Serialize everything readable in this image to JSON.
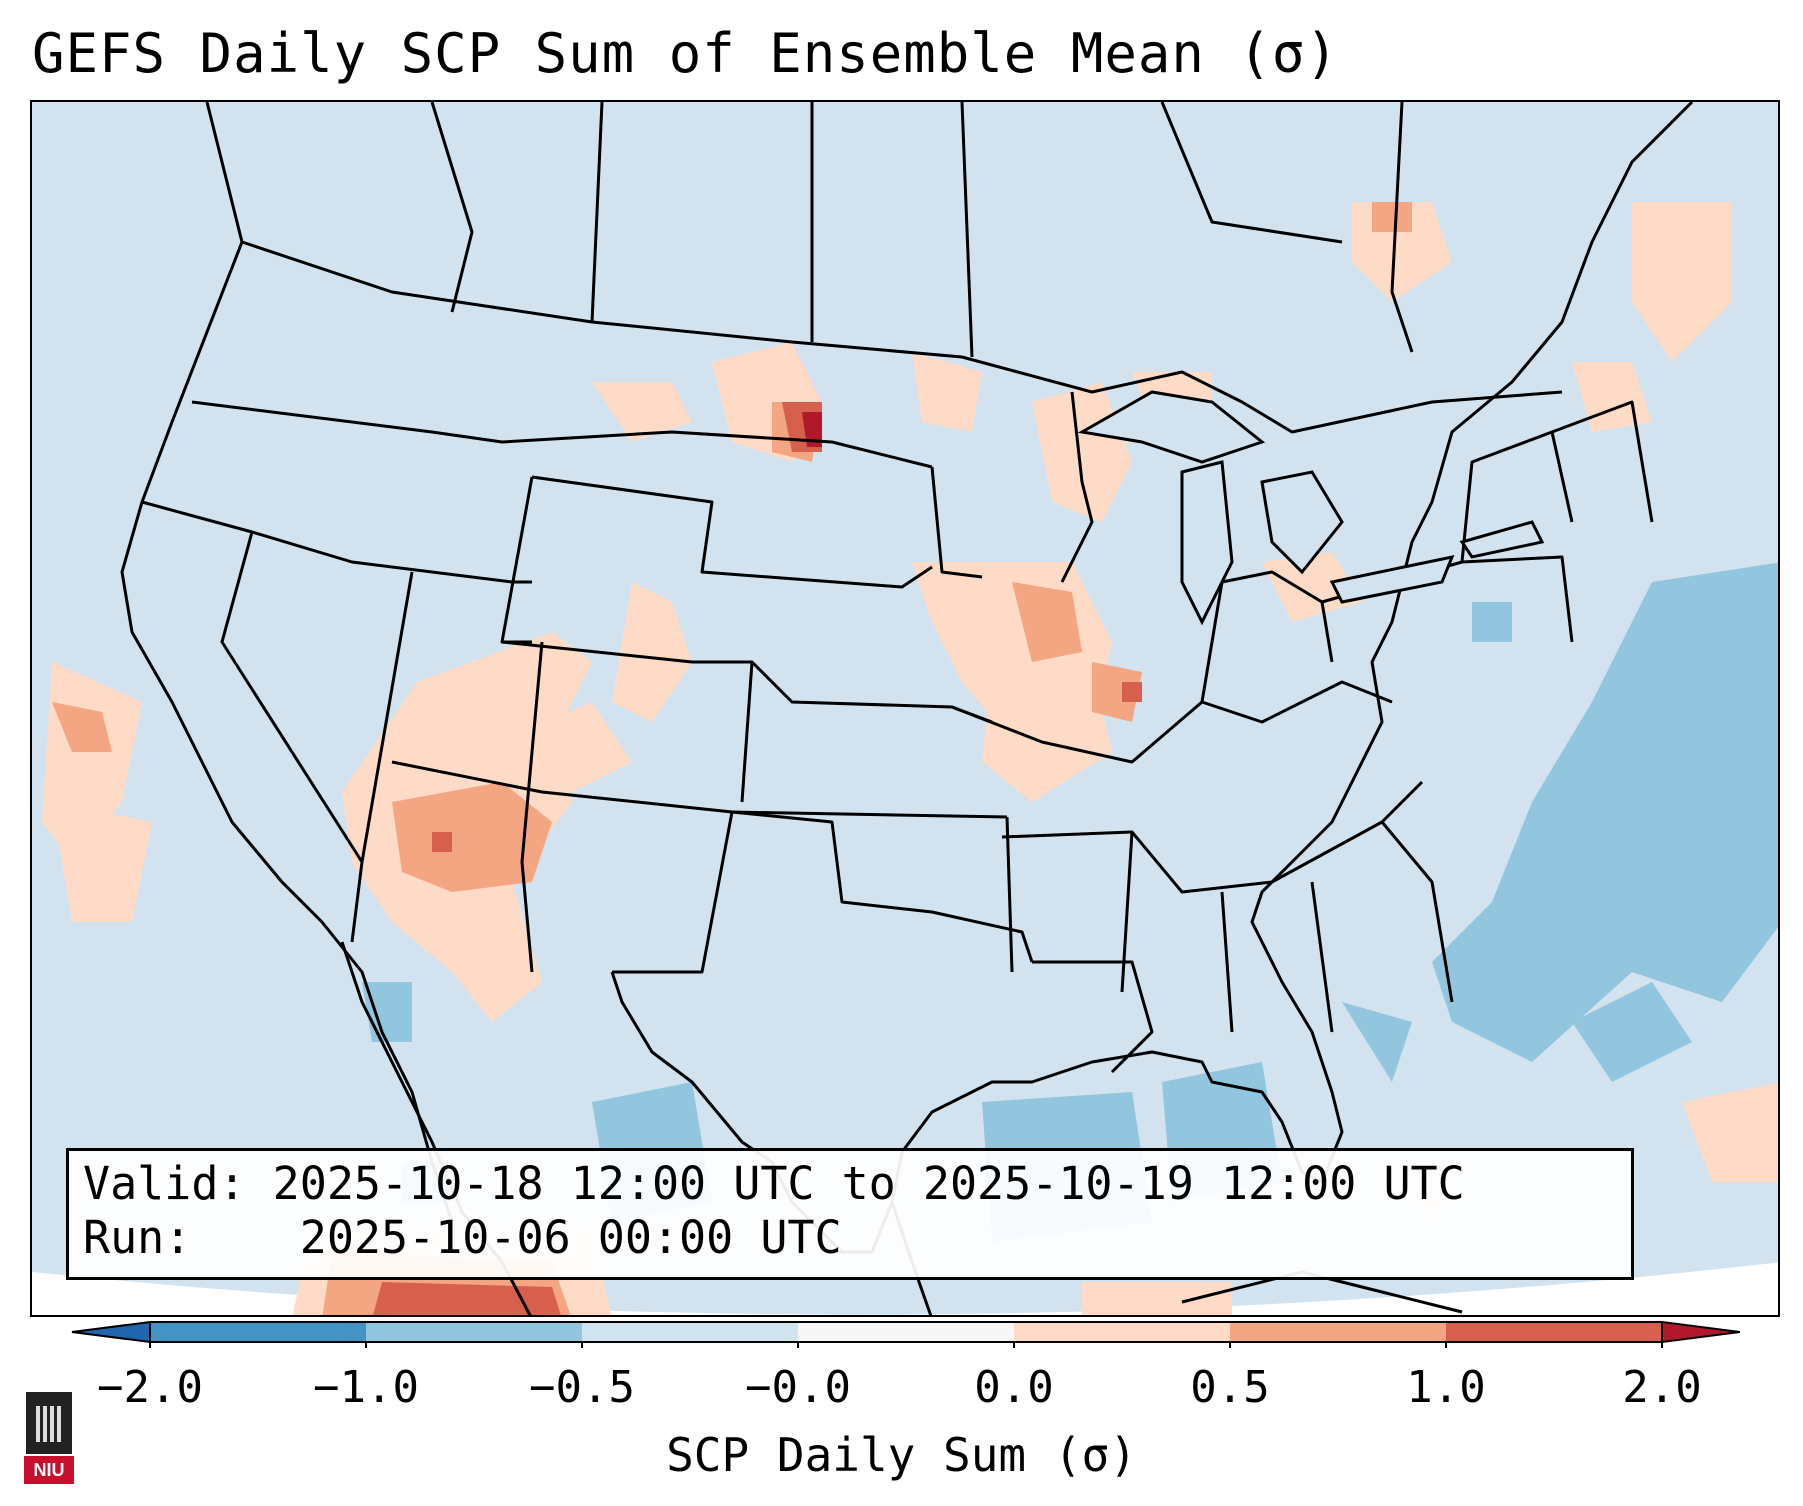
{
  "title": "GEFS Daily SCP Sum of Ensemble Mean (σ)",
  "info": {
    "valid_label": "Valid:",
    "valid_value": "2025-10-18 12:00 UTC to 2025-10-19 12:00 UTC",
    "run_label": "Run:",
    "run_value": "2025-10-06 00:00 UTC"
  },
  "colorbar": {
    "label": "SCP Daily Sum (σ)",
    "ticks": [
      "−2.0",
      "−1.0",
      "−0.5",
      "−0.0",
      "0.0",
      "0.5",
      "1.0",
      "2.0"
    ],
    "colors": [
      "#4393c3",
      "#92c5de",
      "#d1e5f0",
      "#f7f7f7",
      "#fddbc7",
      "#f4a582",
      "#d6604d"
    ],
    "extend_low_color": "#2166ac",
    "extend_high_color": "#b2182b"
  },
  "logo": {
    "text": "NIU"
  }
}
